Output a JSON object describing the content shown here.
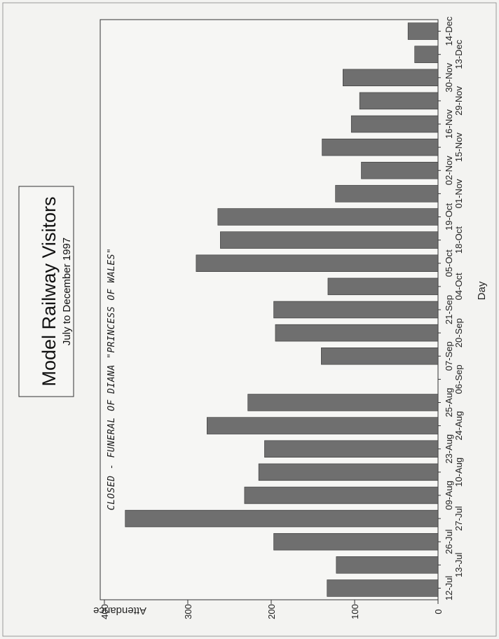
{
  "chart_data": {
    "type": "bar",
    "orientation": "rotated-vertical",
    "title": "Model Railway Visitors",
    "subtitle": "July to December 1997",
    "xlabel": "Day",
    "ylabel": "Attendance",
    "ylim": [
      0,
      400
    ],
    "yticks": [
      0,
      100,
      200,
      300,
      400
    ],
    "grid": false,
    "categories": [
      "12-Jul",
      "13-Jul",
      "26-Jul",
      "27-Jul",
      "09-Aug",
      "10-Aug",
      "23-Aug",
      "24-Aug",
      "25-Aug",
      "06-Sep",
      "07-Sep",
      "20-Sep",
      "21-Sep",
      "04-Oct",
      "05-Oct",
      "18-Oct",
      "19-Oct",
      "01-Nov",
      "02-Nov",
      "15-Nov",
      "16-Nov",
      "29-Nov",
      "30-Nov",
      "13-Dec",
      "14-Dec"
    ],
    "values": [
      133,
      122,
      197,
      375,
      232,
      215,
      208,
      277,
      228,
      0,
      140,
      195,
      197,
      132,
      290,
      261,
      264,
      123,
      92,
      139,
      104,
      94,
      114,
      28,
      36
    ],
    "annotation": "CLOSED - FUNERAL OF DIANA \"PRINCESS OF WALES\""
  }
}
